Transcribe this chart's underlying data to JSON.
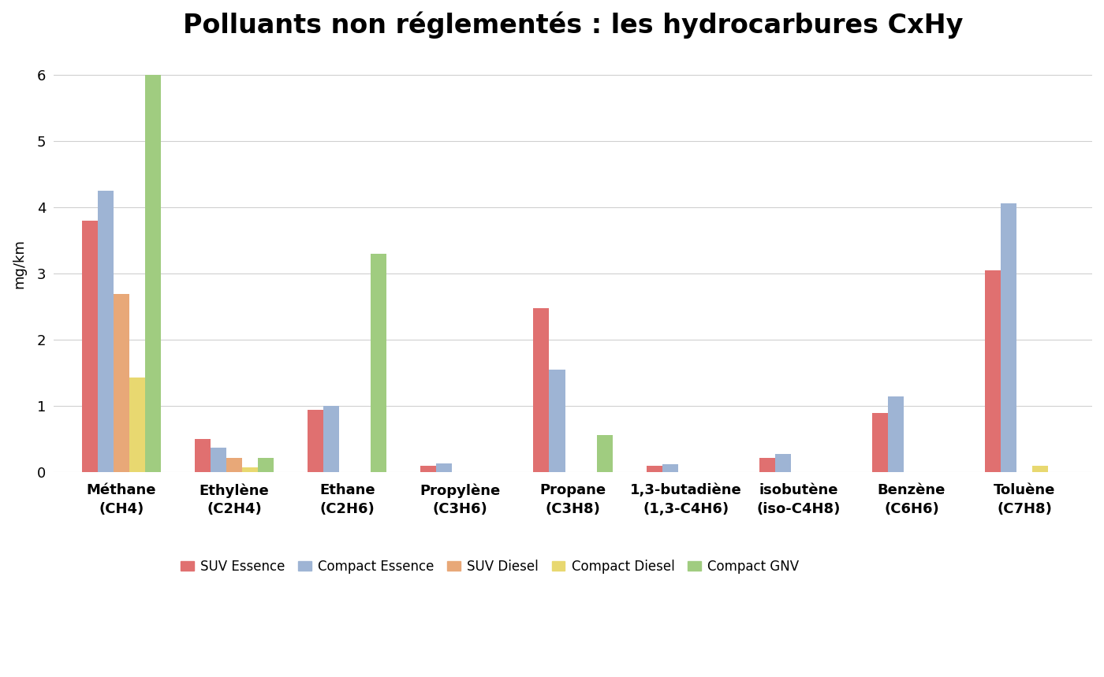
{
  "title": "Polluants non réglementés : les hydrocarbures CxHy",
  "ylabel": "mg/km",
  "categories": [
    "Méthane\n(CH4)",
    "Ethylène\n(C2H4)",
    "Ethane\n(C2H6)",
    "Propylène\n(C3H6)",
    "Propane\n(C3H8)",
    "1,3-butadiène\n(1,3-C4H6)",
    "isobutène\n(iso-C4H8)",
    "Benzène\n(C6H6)",
    "Toluène\n(C7H8)"
  ],
  "series": {
    "SUV Essence": [
      3.8,
      0.5,
      0.95,
      0.1,
      2.48,
      0.1,
      0.22,
      0.9,
      3.05
    ],
    "Compact Essence": [
      4.25,
      0.37,
      1.0,
      0.13,
      1.55,
      0.12,
      0.28,
      1.15,
      4.07
    ],
    "SUV Diesel": [
      2.7,
      0.22,
      0.0,
      0.0,
      0.0,
      0.0,
      0.0,
      0.0,
      0.0
    ],
    "Compact Diesel": [
      1.43,
      0.07,
      0.0,
      0.0,
      0.0,
      0.0,
      0.0,
      0.0,
      0.1
    ],
    "Compact GNV": [
      6.0,
      0.22,
      3.3,
      0.0,
      0.57,
      0.0,
      0.0,
      0.0,
      0.0
    ]
  },
  "colors": {
    "SUV Essence": "#E07070",
    "Compact Essence": "#9EB4D4",
    "SUV Diesel": "#E8A878",
    "Compact Diesel": "#E8D870",
    "Compact GNV": "#A0CC80"
  },
  "ylim": [
    0,
    6.3
  ],
  "yticks": [
    0,
    1,
    2,
    3,
    4,
    5,
    6
  ],
  "background_color": "#FFFFFF",
  "grid_color": "#D0D0D0",
  "title_fontsize": 24,
  "label_fontsize": 13,
  "tick_fontsize": 13,
  "legend_fontsize": 12
}
